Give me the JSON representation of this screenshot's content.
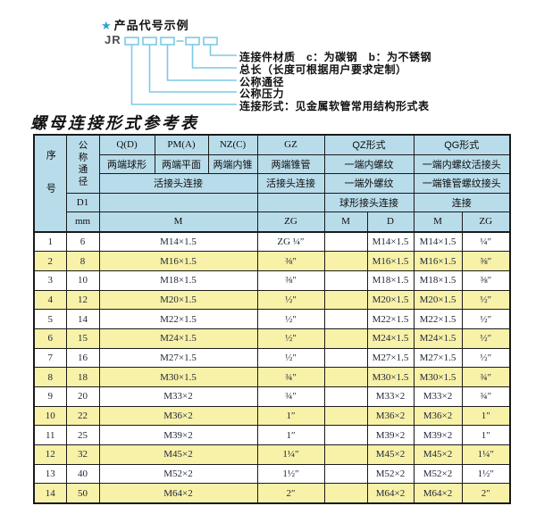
{
  "diagram": {
    "star": "★",
    "title": "产品代号示例",
    "prefix": "JR",
    "labels": [
      "连接件材质　c：为碳钢　b：为不锈钢",
      "总长（长度可根据用户要求定制）",
      "公称通径",
      "公称压力",
      "连接形式：见金属软管常用结构形式表"
    ]
  },
  "table_title": "螺母连接形式参考表",
  "table": {
    "header": {
      "xuhao": "序号",
      "gongchengtongjing": "公称通径",
      "d1": "D1",
      "mm": "mm",
      "col_q": "Q(D)",
      "col_pm": "PM(A)",
      "col_nz": "NZ(C)",
      "col_gz": "GZ",
      "col_qz": "QZ形式",
      "col_qg": "QG形式",
      "q_desc": "两端球形",
      "pm_desc": "两端平面",
      "nz_desc": "两端内锥",
      "gz_desc": "两端锥管",
      "qz_desc1": "一端内螺纹",
      "qg_desc1": "一端内螺纹活接头",
      "live_conn": "活接头连接",
      "gz_conn": "活接头连接",
      "qz_desc2": "一端外螺纹",
      "qg_desc2": "一端锥管螺纹接头",
      "qz_conn": "球形接头连接",
      "qg_conn": "连接",
      "m_label": "M",
      "zg_label": "ZG",
      "qz_m": "M",
      "qz_d": "D",
      "qg_m": "M",
      "qg_zg": "ZG"
    },
    "rows": [
      {
        "no": "1",
        "mm": "6",
        "m": "M14×1.5",
        "gz": "ZG ¼″",
        "qz_m": "",
        "qz_d": "M14×1.5",
        "qg_m": "M14×1.5",
        "qg_zg": "¼″"
      },
      {
        "no": "2",
        "mm": "8",
        "m": "M16×1.5",
        "gz": "⅜″",
        "qz_m": "",
        "qz_d": "M16×1.5",
        "qg_m": "M16×1.5",
        "qg_zg": "⅜″"
      },
      {
        "no": "3",
        "mm": "10",
        "m": "M18×1.5",
        "gz": "⅜″",
        "qz_m": "",
        "qz_d": "M18×1.5",
        "qg_m": "M18×1.5",
        "qg_zg": "⅜″"
      },
      {
        "no": "4",
        "mm": "12",
        "m": "M20×1.5",
        "gz": "½″",
        "qz_m": "",
        "qz_d": "M20×1.5",
        "qg_m": "M20×1.5",
        "qg_zg": "½″"
      },
      {
        "no": "5",
        "mm": "14",
        "m": "M22×1.5",
        "gz": "½″",
        "qz_m": "",
        "qz_d": "M22×1.5",
        "qg_m": "M22×1.5",
        "qg_zg": "½″"
      },
      {
        "no": "6",
        "mm": "15",
        "m": "M24×1.5",
        "gz": "½″",
        "qz_m": "",
        "qz_d": "M24×1.5",
        "qg_m": "M24×1.5",
        "qg_zg": "½″"
      },
      {
        "no": "7",
        "mm": "16",
        "m": "M27×1.5",
        "gz": "½″",
        "qz_m": "",
        "qz_d": "M27×1.5",
        "qg_m": "M27×1.5",
        "qg_zg": "½″"
      },
      {
        "no": "8",
        "mm": "18",
        "m": "M30×1.5",
        "gz": "¾″",
        "qz_m": "",
        "qz_d": "M30×1.5",
        "qg_m": "M30×1.5",
        "qg_zg": "¾″"
      },
      {
        "no": "9",
        "mm": "20",
        "m": "M33×2",
        "gz": "¾″",
        "qz_m": "",
        "qz_d": "M33×2",
        "qg_m": "M33×2",
        "qg_zg": "¾″"
      },
      {
        "no": "10",
        "mm": "22",
        "m": "M36×2",
        "gz": "1″",
        "qz_m": "",
        "qz_d": "M36×2",
        "qg_m": "M36×2",
        "qg_zg": "1″"
      },
      {
        "no": "11",
        "mm": "25",
        "m": "M39×2",
        "gz": "1″",
        "qz_m": "",
        "qz_d": "M39×2",
        "qg_m": "M39×2",
        "qg_zg": "1″"
      },
      {
        "no": "12",
        "mm": "32",
        "m": "M45×2",
        "gz": "1¼″",
        "qz_m": "",
        "qz_d": "M45×2",
        "qg_m": "M45×2",
        "qg_zg": "1¼″"
      },
      {
        "no": "13",
        "mm": "40",
        "m": "M52×2",
        "gz": "1½″",
        "qz_m": "",
        "qz_d": "M52×2",
        "qg_m": "M52×2",
        "qg_zg": "1½″"
      },
      {
        "no": "14",
        "mm": "50",
        "m": "M64×2",
        "gz": "2″",
        "qz_m": "",
        "qz_d": "M64×2",
        "qg_m": "M64×2",
        "qg_zg": "2″"
      }
    ]
  },
  "colors": {
    "header_bg": "#b9dcea",
    "row_alt_bg": "#f8f1a8",
    "accent_cyan": "#7ccae6",
    "star_blue": "#2da0d2",
    "border": "#1a1a1a"
  }
}
